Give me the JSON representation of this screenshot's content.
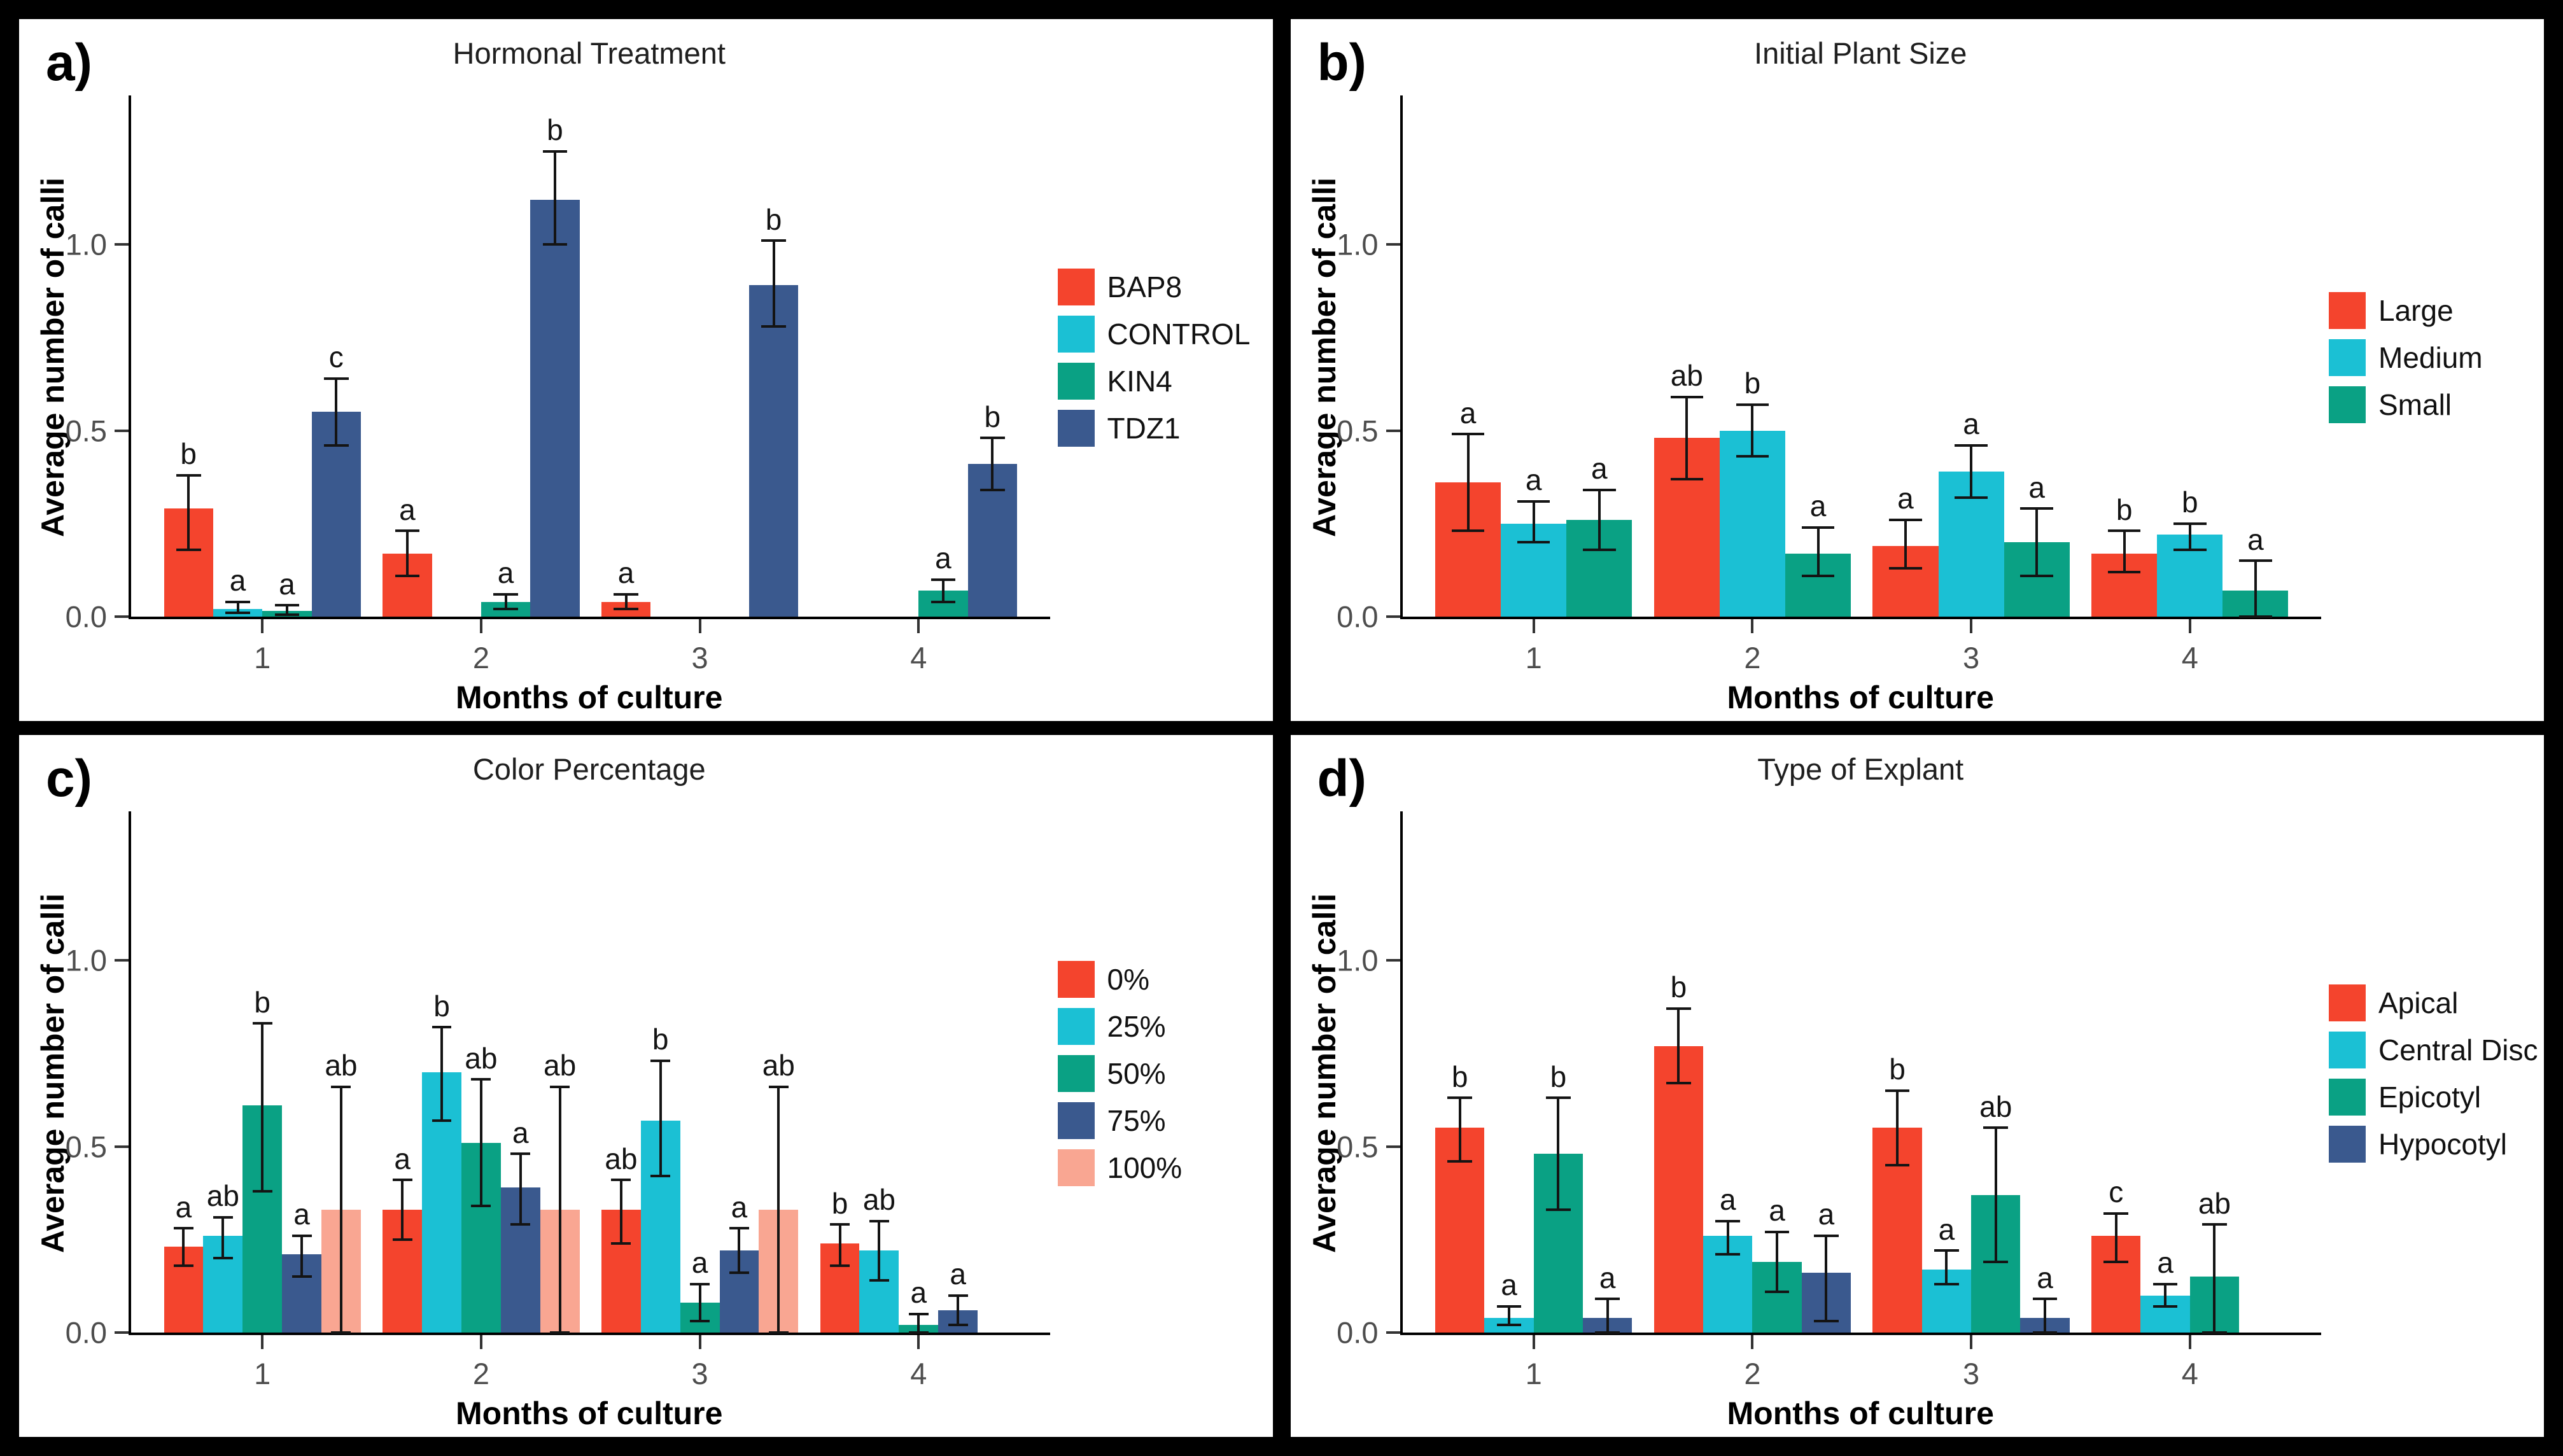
{
  "figure": {
    "border_color": "#000000",
    "panel_background": "#ffffff",
    "error_bar_color": "#141414"
  },
  "chart_data": [
    {
      "type": "bar",
      "letter": "a)",
      "title": "Hormonal Treatment",
      "xlabel": "Months of culture",
      "ylabel": "Average number of calli",
      "categories": [
        "1",
        "2",
        "3",
        "4"
      ],
      "ylim": [
        0,
        1.4
      ],
      "yticks": [
        {
          "value": 0.0,
          "label": "0.0"
        },
        {
          "value": 0.5,
          "label": "0.5"
        },
        {
          "value": 1.0,
          "label": "1.0"
        }
      ],
      "grid": false,
      "legend_position": "right",
      "series": [
        {
          "name": "BAP8",
          "color": "#F4442D",
          "values": [
            0.29,
            0.17,
            0.04,
            null
          ],
          "err_low": [
            0.18,
            0.11,
            0.02,
            null
          ],
          "err_high": [
            0.38,
            0.23,
            0.06,
            null
          ],
          "sig": [
            "b",
            "a",
            "a",
            null
          ]
        },
        {
          "name": "CONTROL",
          "color": "#1BC0D4",
          "values": [
            0.02,
            null,
            null,
            null
          ],
          "err_low": [
            0.01,
            null,
            null,
            null
          ],
          "err_high": [
            0.04,
            null,
            null,
            null
          ],
          "sig": [
            "a",
            null,
            null,
            null
          ]
        },
        {
          "name": "KIN4",
          "color": "#0AA184",
          "values": [
            0.015,
            0.04,
            null,
            0.07
          ],
          "err_low": [
            0.005,
            0.02,
            null,
            0.04
          ],
          "err_high": [
            0.03,
            0.06,
            null,
            0.1
          ],
          "sig": [
            "a",
            "a",
            null,
            "a"
          ]
        },
        {
          "name": "TDZ1",
          "color": "#3A598E",
          "values": [
            0.55,
            1.12,
            0.89,
            0.41
          ],
          "err_low": [
            0.46,
            1.0,
            0.78,
            0.34
          ],
          "err_high": [
            0.64,
            1.25,
            1.01,
            0.48
          ],
          "sig": [
            "c",
            "b",
            "b",
            "b"
          ]
        }
      ]
    },
    {
      "type": "bar",
      "letter": "b)",
      "title": "Initial Plant Size",
      "xlabel": "Months of culture",
      "ylabel": "Average number of calli",
      "categories": [
        "1",
        "2",
        "3",
        "4"
      ],
      "ylim": [
        0,
        1.4
      ],
      "yticks": [
        {
          "value": 0.0,
          "label": "0.0"
        },
        {
          "value": 0.5,
          "label": "0.5"
        },
        {
          "value": 1.0,
          "label": "1.0"
        }
      ],
      "grid": false,
      "legend_position": "right",
      "series": [
        {
          "name": "Large",
          "color": "#F4442D",
          "values": [
            0.36,
            0.48,
            0.19,
            0.17
          ],
          "err_low": [
            0.23,
            0.37,
            0.13,
            0.12
          ],
          "err_high": [
            0.49,
            0.59,
            0.26,
            0.23
          ],
          "sig": [
            "a",
            "ab",
            "a",
            "b"
          ]
        },
        {
          "name": "Medium",
          "color": "#1BC0D4",
          "values": [
            0.25,
            0.5,
            0.39,
            0.22
          ],
          "err_low": [
            0.2,
            0.43,
            0.32,
            0.18
          ],
          "err_high": [
            0.31,
            0.57,
            0.46,
            0.25
          ],
          "sig": [
            "a",
            "b",
            "a",
            "b"
          ]
        },
        {
          "name": "Small",
          "color": "#0AA184",
          "values": [
            0.26,
            0.17,
            0.2,
            0.07
          ],
          "err_low": [
            0.18,
            0.11,
            0.11,
            0.0
          ],
          "err_high": [
            0.34,
            0.24,
            0.29,
            0.15
          ],
          "sig": [
            "a",
            "a",
            "a",
            "a"
          ]
        }
      ]
    },
    {
      "type": "bar",
      "letter": "c)",
      "title": "Color Percentage",
      "xlabel": "Months of culture",
      "ylabel": "Average number of calli",
      "categories": [
        "1",
        "2",
        "3",
        "4"
      ],
      "ylim": [
        0,
        1.4
      ],
      "yticks": [
        {
          "value": 0.0,
          "label": "0.0"
        },
        {
          "value": 0.5,
          "label": "0.5"
        },
        {
          "value": 1.0,
          "label": "1.0"
        }
      ],
      "grid": false,
      "legend_position": "right",
      "series": [
        {
          "name": "0%",
          "color": "#F4442D",
          "values": [
            0.23,
            0.33,
            0.33,
            0.24
          ],
          "err_low": [
            0.18,
            0.25,
            0.24,
            0.18
          ],
          "err_high": [
            0.28,
            0.41,
            0.41,
            0.29
          ],
          "sig": [
            "a",
            "a",
            "ab",
            "b"
          ]
        },
        {
          "name": "25%",
          "color": "#1BC0D4",
          "values": [
            0.26,
            0.7,
            0.57,
            0.22
          ],
          "err_low": [
            0.2,
            0.57,
            0.42,
            0.14
          ],
          "err_high": [
            0.31,
            0.82,
            0.73,
            0.3
          ],
          "sig": [
            "ab",
            "b",
            "b",
            "ab"
          ]
        },
        {
          "name": "50%",
          "color": "#0AA184",
          "values": [
            0.61,
            0.51,
            0.08,
            0.02
          ],
          "err_low": [
            0.38,
            0.34,
            0.03,
            0.0
          ],
          "err_high": [
            0.83,
            0.68,
            0.13,
            0.05
          ],
          "sig": [
            "b",
            "ab",
            "a",
            "a"
          ]
        },
        {
          "name": "75%",
          "color": "#3A598E",
          "values": [
            0.21,
            0.39,
            0.22,
            0.06
          ],
          "err_low": [
            0.15,
            0.29,
            0.16,
            0.02
          ],
          "err_high": [
            0.26,
            0.48,
            0.28,
            0.1
          ],
          "sig": [
            "a",
            "a",
            "a",
            "a"
          ]
        },
        {
          "name": "100%",
          "color": "#F9A692",
          "values": [
            0.33,
            0.33,
            0.33,
            null
          ],
          "err_low": [
            0.0,
            0.0,
            0.0,
            null
          ],
          "err_high": [
            0.66,
            0.66,
            0.66,
            null
          ],
          "sig": [
            "ab",
            "ab",
            "ab",
            null
          ]
        }
      ]
    },
    {
      "type": "bar",
      "letter": "d)",
      "title": "Type of Explant",
      "xlabel": "Months of culture",
      "ylabel": "Average number of calli",
      "categories": [
        "1",
        "2",
        "3",
        "4"
      ],
      "ylim": [
        0,
        1.4
      ],
      "yticks": [
        {
          "value": 0.0,
          "label": "0.0"
        },
        {
          "value": 0.5,
          "label": "0.5"
        },
        {
          "value": 1.0,
          "label": "1.0"
        }
      ],
      "grid": false,
      "legend_position": "right",
      "series": [
        {
          "name": "Apical",
          "color": "#F4442D",
          "values": [
            0.55,
            0.77,
            0.55,
            0.26
          ],
          "err_low": [
            0.46,
            0.67,
            0.45,
            0.19
          ],
          "err_high": [
            0.63,
            0.87,
            0.65,
            0.32
          ],
          "sig": [
            "b",
            "b",
            "b",
            "c"
          ]
        },
        {
          "name": "Central Disc",
          "color": "#1BC0D4",
          "values": [
            0.04,
            0.26,
            0.17,
            0.1
          ],
          "err_low": [
            0.02,
            0.21,
            0.13,
            0.07
          ],
          "err_high": [
            0.07,
            0.3,
            0.22,
            0.13
          ],
          "sig": [
            "a",
            "a",
            "a",
            "a"
          ]
        },
        {
          "name": "Epicotyl",
          "color": "#0AA184",
          "values": [
            0.48,
            0.19,
            0.37,
            0.15
          ],
          "err_low": [
            0.33,
            0.11,
            0.19,
            0.0
          ],
          "err_high": [
            0.63,
            0.27,
            0.55,
            0.29
          ],
          "sig": [
            "b",
            "a",
            "ab",
            "ab"
          ]
        },
        {
          "name": "Hypocotyl",
          "color": "#3A598E",
          "values": [
            0.04,
            0.16,
            0.04,
            null
          ],
          "err_low": [
            0.0,
            0.03,
            0.0,
            null
          ],
          "err_high": [
            0.09,
            0.26,
            0.09,
            null
          ],
          "sig": [
            "a",
            "a",
            "a",
            null
          ]
        }
      ]
    }
  ]
}
